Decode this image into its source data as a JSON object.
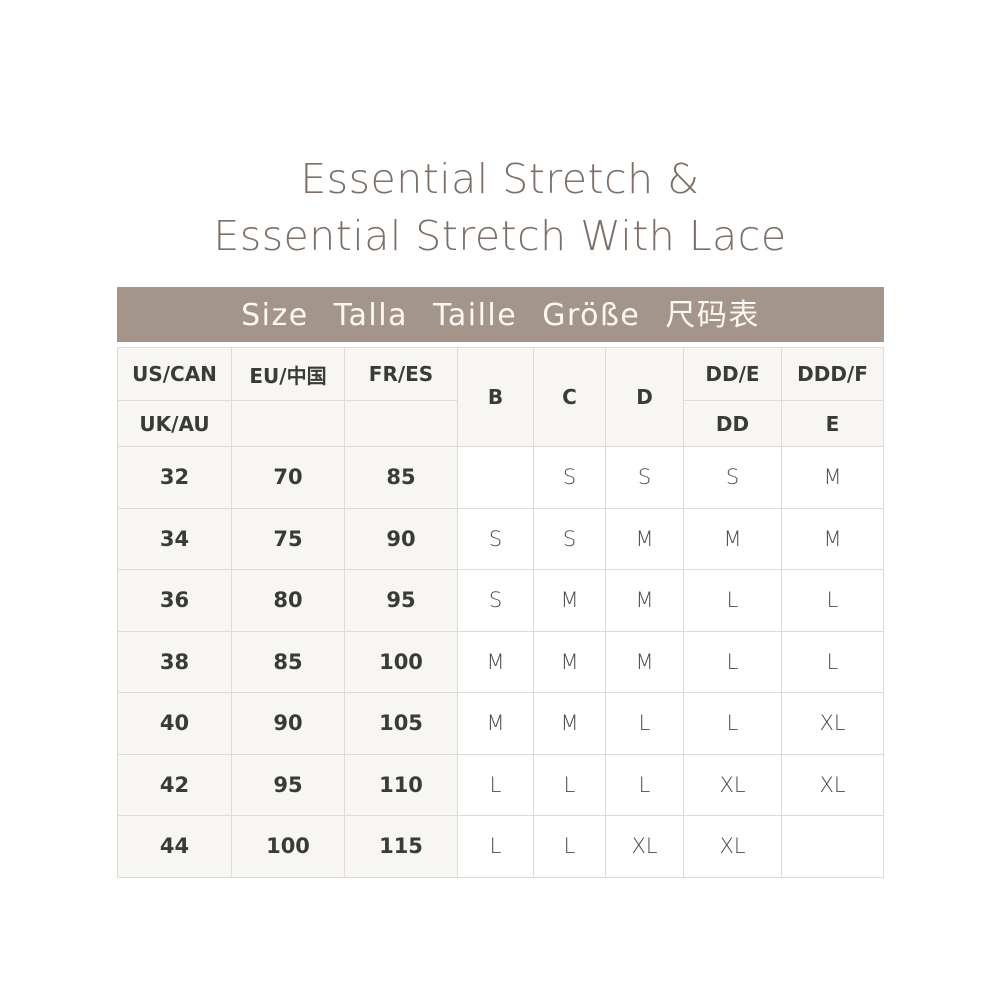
{
  "title_line1": "Essential Stretch &",
  "title_line2": "Essential Stretch With Lace",
  "band": "Size Talla Taille Größe 尺码表",
  "colors": {
    "band": "#a39589",
    "title": "#7d6f66",
    "cell": "#f8f6f2"
  },
  "header": {
    "us_can": "US/CAN",
    "uk_au": "UK/AU",
    "eu_cn": "EU/中国",
    "fr_es": "FR/ES",
    "b": "B",
    "c": "C",
    "d": "D",
    "dd_e": "DD/E",
    "dd": "DD",
    "ddd_f": "DDD/F",
    "e": "E"
  },
  "rows": [
    {
      "us": "32",
      "eu": "70",
      "fr": "85",
      "b": "",
      "c": "S",
      "d": "S",
      "dde": "S",
      "dddf": "M"
    },
    {
      "us": "34",
      "eu": "75",
      "fr": "90",
      "b": "S",
      "c": "S",
      "d": "M",
      "dde": "M",
      "dddf": "M"
    },
    {
      "us": "36",
      "eu": "80",
      "fr": "95",
      "b": "S",
      "c": "M",
      "d": "M",
      "dde": "L",
      "dddf": "L"
    },
    {
      "us": "38",
      "eu": "85",
      "fr": "100",
      "b": "M",
      "c": "M",
      "d": "M",
      "dde": "L",
      "dddf": "L"
    },
    {
      "us": "40",
      "eu": "90",
      "fr": "105",
      "b": "M",
      "c": "M",
      "d": "L",
      "dde": "L",
      "dddf": "XL"
    },
    {
      "us": "42",
      "eu": "95",
      "fr": "110",
      "b": "L",
      "c": "L",
      "d": "L",
      "dde": "XL",
      "dddf": "XL"
    },
    {
      "us": "44",
      "eu": "100",
      "fr": "115",
      "b": "L",
      "c": "L",
      "d": "XL",
      "dde": "XL",
      "dddf": ""
    }
  ]
}
